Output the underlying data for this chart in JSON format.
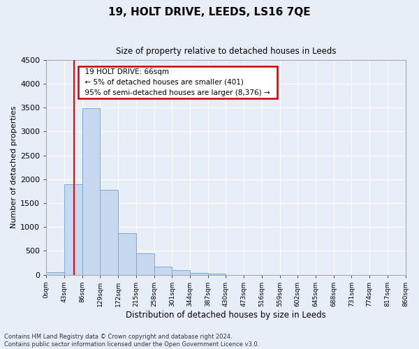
{
  "title": "19, HOLT DRIVE, LEEDS, LS16 7QE",
  "subtitle": "Size of property relative to detached houses in Leeds",
  "xlabel": "Distribution of detached houses by size in Leeds",
  "ylabel": "Number of detached properties",
  "bar_color": "#c5d8f0",
  "bar_edge_color": "#7aadd4",
  "bin_edges": [
    0,
    43,
    86,
    129,
    172,
    215,
    258,
    301,
    344,
    387,
    430,
    473,
    516,
    559,
    602,
    645,
    688,
    731,
    774,
    817,
    860
  ],
  "bar_heights": [
    45,
    1900,
    3490,
    1775,
    875,
    450,
    175,
    90,
    40,
    20,
    0,
    0,
    0,
    0,
    0,
    0,
    0,
    0,
    0,
    0
  ],
  "tick_labels": [
    "0sqm",
    "43sqm",
    "86sqm",
    "129sqm",
    "172sqm",
    "215sqm",
    "258sqm",
    "301sqm",
    "344sqm",
    "387sqm",
    "430sqm",
    "473sqm",
    "516sqm",
    "559sqm",
    "602sqm",
    "645sqm",
    "688sqm",
    "731sqm",
    "774sqm",
    "817sqm",
    "860sqm"
  ],
  "ylim": [
    0,
    4500
  ],
  "yticks": [
    0,
    500,
    1000,
    1500,
    2000,
    2500,
    3000,
    3500,
    4000,
    4500
  ],
  "red_line_x": 66,
  "annotation_title": "19 HOLT DRIVE: 66sqm",
  "annotation_line1": "← 5% of detached houses are smaller (401)",
  "annotation_line2": "95% of semi-detached houses are larger (8,376) →",
  "annotation_box_color": "#ffffff",
  "annotation_box_edge": "#cc0000",
  "footnote1": "Contains HM Land Registry data © Crown copyright and database right 2024.",
  "footnote2": "Contains public sector information licensed under the Open Government Licence v3.0.",
  "background_color": "#e8eef8",
  "grid_color": "#ffffff"
}
